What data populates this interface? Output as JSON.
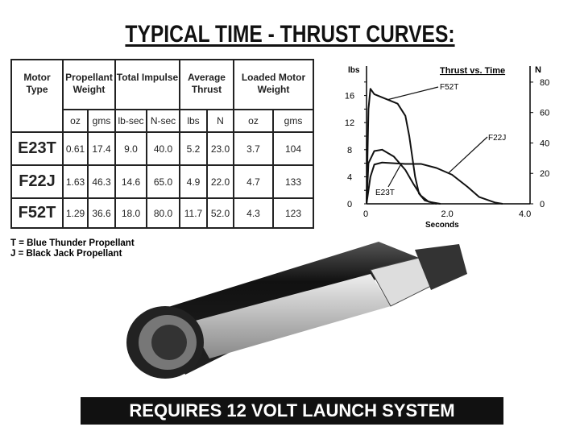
{
  "title": "TYPICAL TIME - THRUST CURVES:",
  "table": {
    "headers": [
      "Motor Type",
      "Propellant Weight",
      "Total Impulse",
      "Average Thrust",
      "Loaded Motor Weight"
    ],
    "units": [
      "oz",
      "gms",
      "lb-sec",
      "N-sec",
      "lbs",
      "N",
      "oz",
      "gms"
    ],
    "rows": [
      {
        "motor": "E23T",
        "values": [
          "0.61",
          "17.4",
          "9.0",
          "40.0",
          "5.2",
          "23.0",
          "3.7",
          "104"
        ]
      },
      {
        "motor": "F22J",
        "values": [
          "1.63",
          "46.3",
          "14.6",
          "65.0",
          "4.9",
          "22.0",
          "4.7",
          "133"
        ]
      },
      {
        "motor": "F52T",
        "values": [
          "1.29",
          "36.6",
          "18.0",
          "80.0",
          "11.7",
          "52.0",
          "4.3",
          "123"
        ]
      }
    ]
  },
  "legend": [
    "T = Blue Thunder Propellant",
    "J = Black Jack Propellant"
  ],
  "banner": "REQUIRES 12 VOLT LAUNCH SYSTEM",
  "chart_data": {
    "type": "line",
    "title": "Thrust vs. Time",
    "xlabel": "Seconds",
    "ylabel_left": "lbs",
    "ylabel_right": "N",
    "xlim": [
      0,
      4.2
    ],
    "ylim_left": [
      0,
      18
    ],
    "ylim_right": [
      0,
      80
    ],
    "x_ticks": [
      "0",
      "2.0",
      "4.0"
    ],
    "y_ticks_left": [
      "0",
      "4",
      "8",
      "12",
      "16"
    ],
    "y_ticks_right": [
      "0",
      "20",
      "40",
      "60",
      "80"
    ],
    "grid": false,
    "series": [
      {
        "name": "F52T",
        "points": [
          [
            0,
            0
          ],
          [
            0.05,
            14
          ],
          [
            0.1,
            17
          ],
          [
            0.2,
            16.2
          ],
          [
            0.5,
            15.5
          ],
          [
            0.8,
            14.8
          ],
          [
            1.0,
            13
          ],
          [
            1.1,
            10
          ],
          [
            1.25,
            4
          ],
          [
            1.35,
            1.5
          ],
          [
            1.5,
            0.5
          ],
          [
            1.8,
            0
          ]
        ]
      },
      {
        "name": "E23T",
        "points": [
          [
            0,
            0
          ],
          [
            0.05,
            6
          ],
          [
            0.2,
            7.8
          ],
          [
            0.4,
            8
          ],
          [
            0.7,
            7
          ],
          [
            1.0,
            5
          ],
          [
            1.2,
            3
          ],
          [
            1.4,
            1.2
          ],
          [
            1.6,
            0.3
          ],
          [
            1.9,
            0
          ]
        ]
      },
      {
        "name": "F22J",
        "points": [
          [
            0,
            0
          ],
          [
            0.1,
            4
          ],
          [
            0.2,
            5.8
          ],
          [
            0.4,
            6.1
          ],
          [
            1.0,
            5.9
          ],
          [
            1.4,
            5.9
          ],
          [
            1.8,
            5.3
          ],
          [
            2.2,
            4.3
          ],
          [
            2.6,
            2.5
          ],
          [
            2.9,
            1
          ],
          [
            3.3,
            0.2
          ],
          [
            3.5,
            0
          ]
        ]
      }
    ]
  }
}
